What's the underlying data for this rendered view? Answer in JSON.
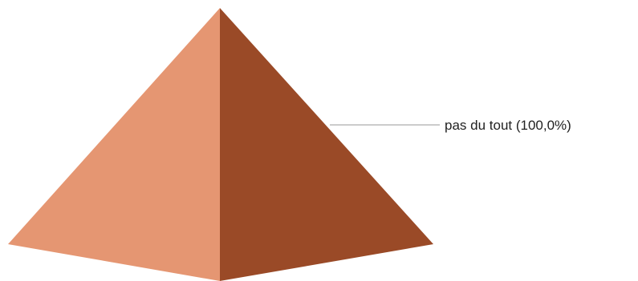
{
  "chart_data": {
    "type": "pyramid",
    "title": "",
    "series": [
      {
        "label": "pas du tout (100,0%)",
        "value": 100.0,
        "color": "#9a4a27"
      }
    ],
    "colors": {
      "light_face": "#e59672",
      "dark_face": "#9a4a27",
      "leader_line": "#9a9a9a"
    }
  }
}
